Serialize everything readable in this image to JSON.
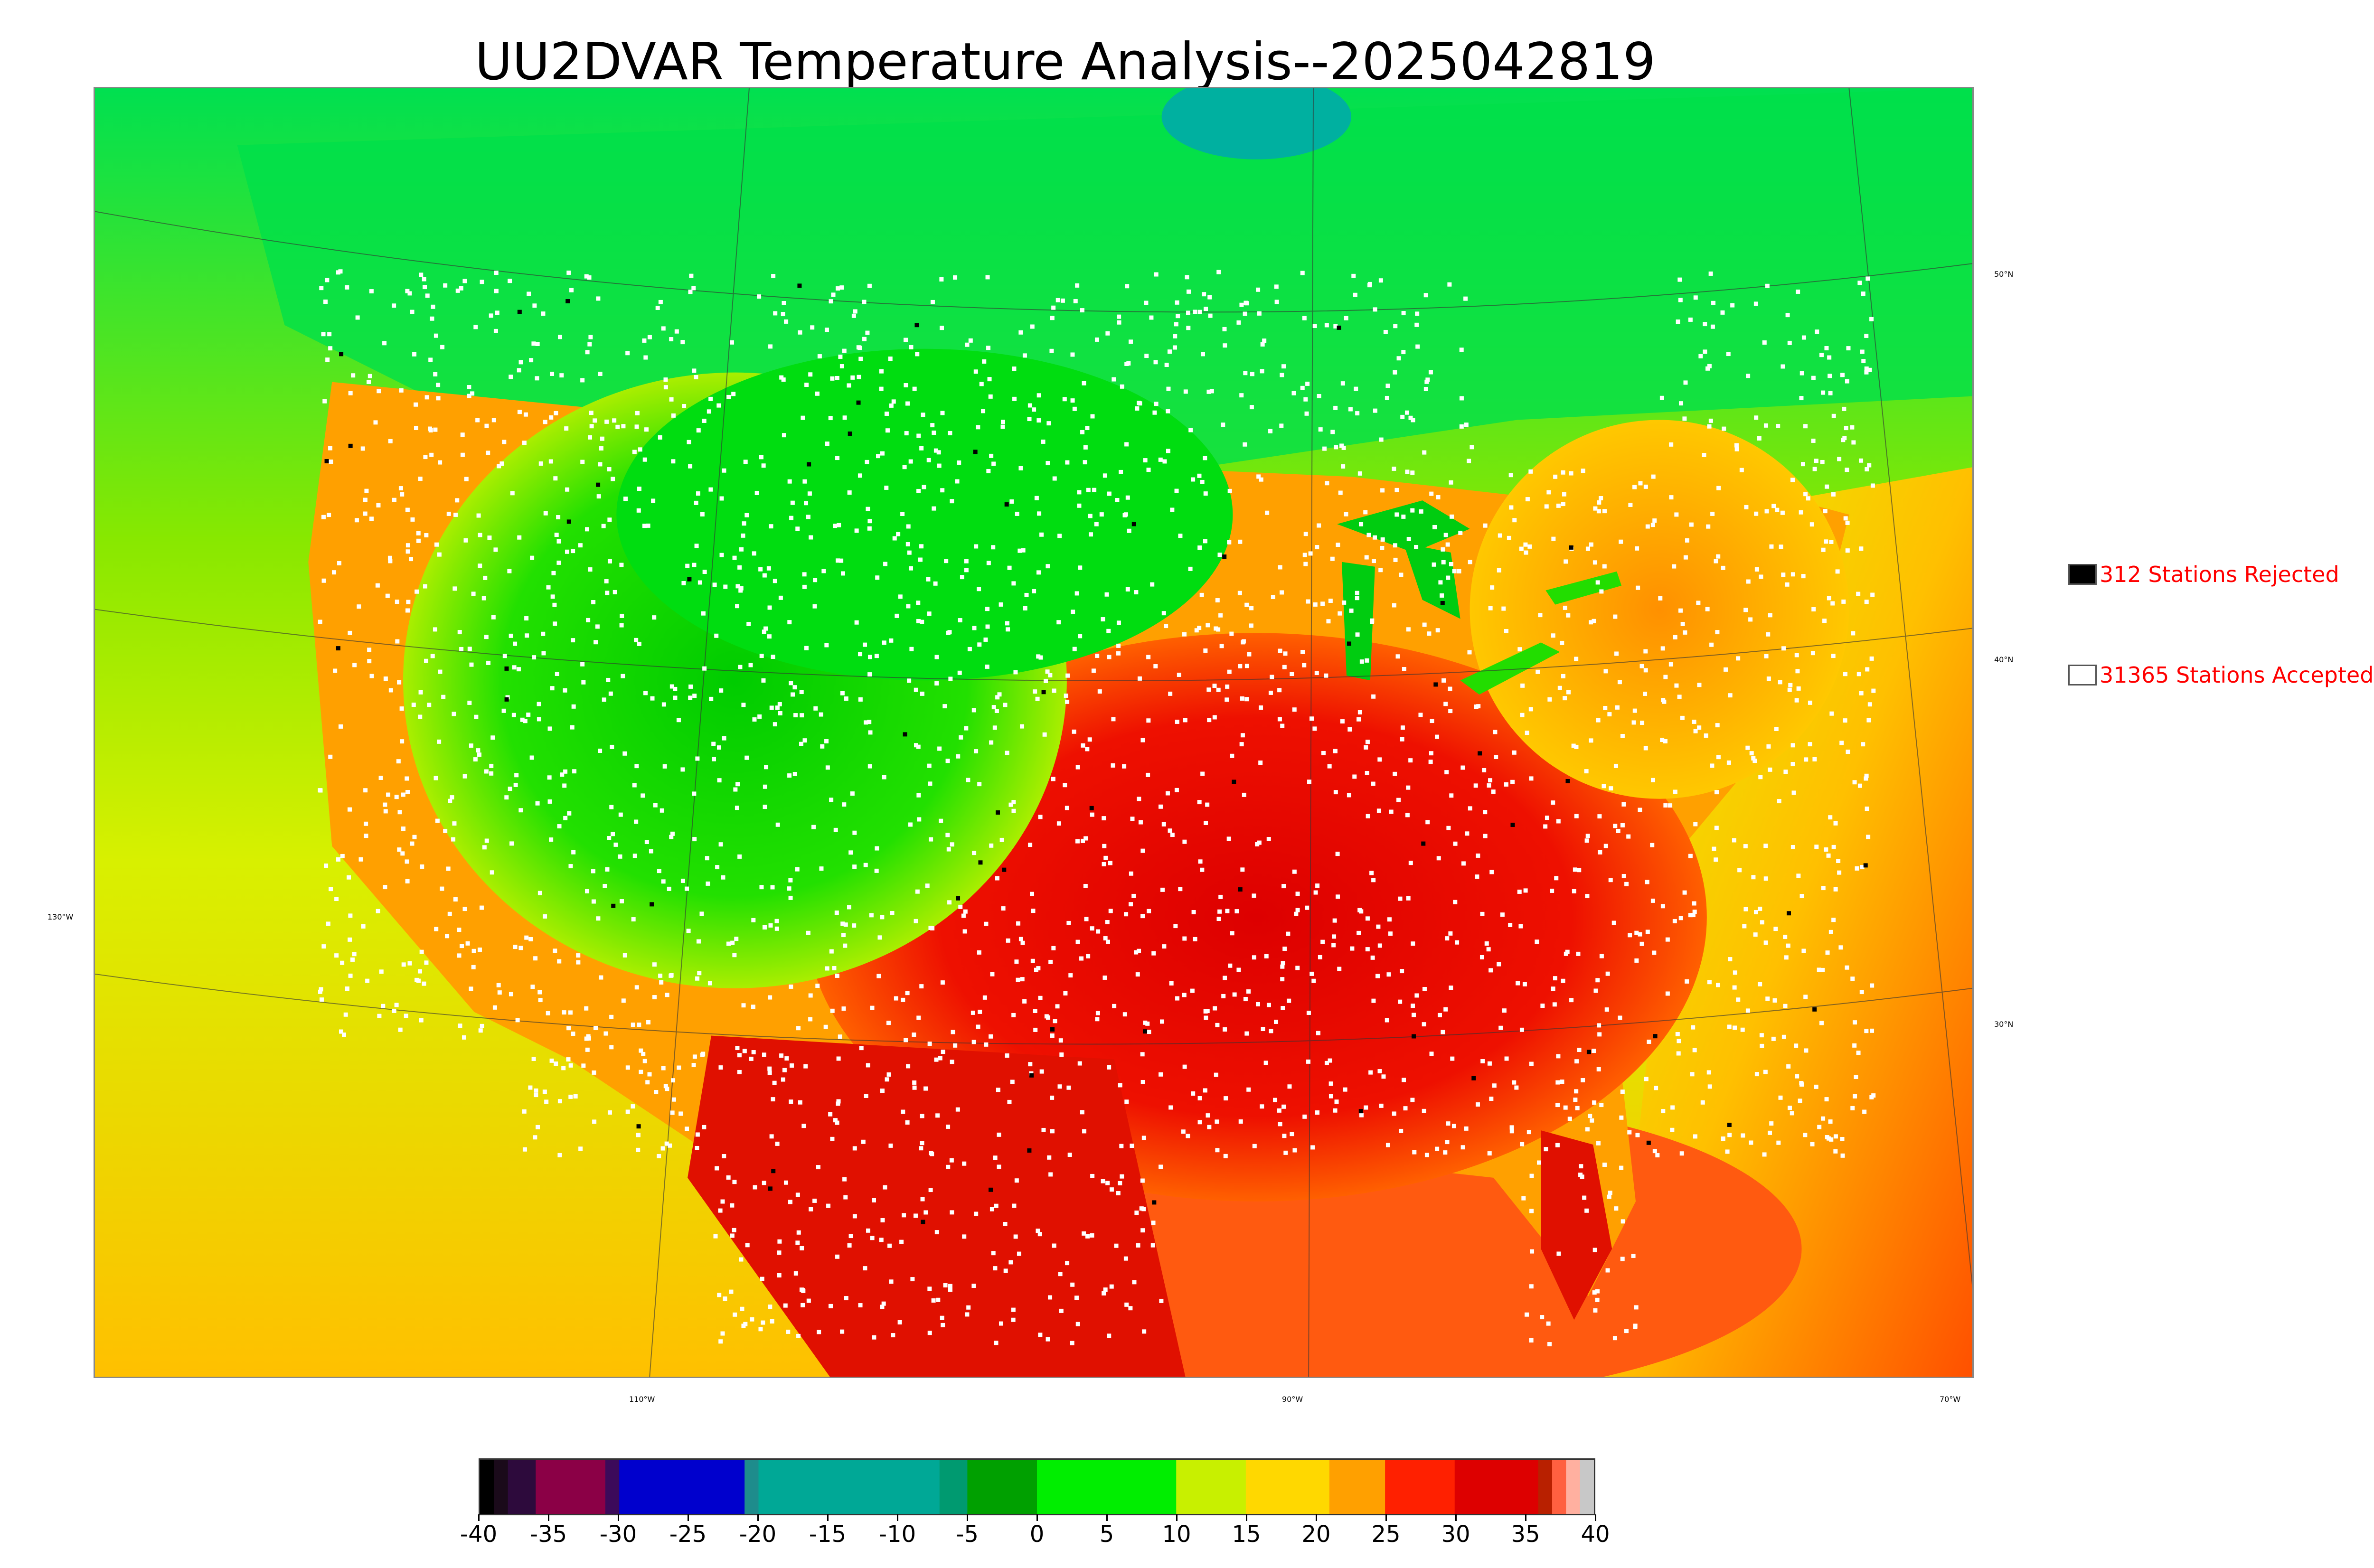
{
  "title": "UU2DVAR Temperature Analysis--2025042819",
  "legend": {
    "rejected": {
      "label": "312 Stations Rejected",
      "color": "#000000"
    },
    "accepted": {
      "label": "31365 Stations Accepted",
      "color": "#ffffff"
    }
  },
  "axes": {
    "lon_labels": [
      "110°W",
      "90°W",
      "70°W"
    ],
    "left_label": "130°W",
    "lat_labels": [
      "50°N",
      "40°N",
      "30°N"
    ]
  },
  "colorbar": {
    "ticks": [
      "-40",
      "-35",
      "-30",
      "-25",
      "-20",
      "-15",
      "-10",
      "-5",
      "0",
      "5",
      "10",
      "15",
      "20",
      "25",
      "30",
      "35",
      "40"
    ],
    "range": [
      -40,
      40
    ],
    "segments": [
      {
        "from": -40,
        "to": -39,
        "color": "#000000"
      },
      {
        "from": -39,
        "to": -38,
        "color": "#1a0a1a"
      },
      {
        "from": -38,
        "to": -36,
        "color": "#2d0a3c"
      },
      {
        "from": -36,
        "to": -31,
        "color": "#8b0046"
      },
      {
        "from": -31,
        "to": -30,
        "color": "#3c0a5a"
      },
      {
        "from": -30,
        "to": -21,
        "color": "#0000cd"
      },
      {
        "from": -21,
        "to": -20,
        "color": "#1e8c8c"
      },
      {
        "from": -20,
        "to": -7,
        "color": "#00a896"
      },
      {
        "from": -7,
        "to": -5,
        "color": "#009a70"
      },
      {
        "from": -5,
        "to": 0,
        "color": "#00a000"
      },
      {
        "from": 0,
        "to": 10,
        "color": "#00ee00"
      },
      {
        "from": 10,
        "to": 15,
        "color": "#c8f000"
      },
      {
        "from": 15,
        "to": 21,
        "color": "#ffd800"
      },
      {
        "from": 21,
        "to": 25,
        "color": "#ffa000"
      },
      {
        "from": 25,
        "to": 30,
        "color": "#ff2000"
      },
      {
        "from": 30,
        "to": 36,
        "color": "#dd0000"
      },
      {
        "from": 36,
        "to": 37,
        "color": "#b82000"
      },
      {
        "from": 37,
        "to": 38,
        "color": "#ff6040"
      },
      {
        "from": 38,
        "to": 39,
        "color": "#ffb0a0"
      },
      {
        "from": 39,
        "to": 40,
        "color": "#c8c8c8"
      }
    ]
  },
  "colors": {
    "ocean_north": "#00e060",
    "ocean_pacific": "#d8f000",
    "ocean_atlantic": "#ffc000",
    "gulf": "#ff5010",
    "land_warm": "#ee1000",
    "land_mid": "#ffa000",
    "land_cool": "#00dd00"
  }
}
